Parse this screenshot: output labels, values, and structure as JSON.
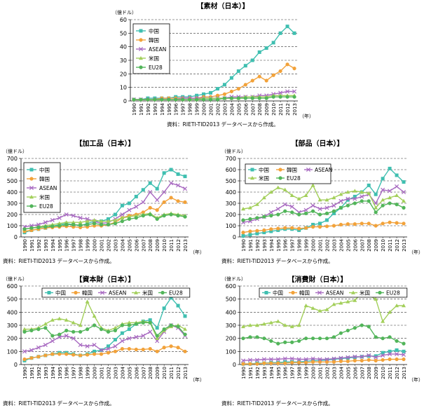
{
  "colors": {
    "中国": "#3fbfb0",
    "韓国": "#f2a23a",
    "ASEAN": "#a86ac1",
    "米国": "#a3cf5a",
    "EU28": "#52b55a"
  },
  "chart_data": [
    {
      "type": "line",
      "title": "【素材（日本）】",
      "ylabel": "（億ドル）",
      "xunit": "（年）",
      "ylim": [
        0,
        60
      ],
      "yticks": [
        0,
        10,
        20,
        30,
        40,
        50,
        60
      ],
      "grid": "horizontal-dashed",
      "legend": "top-left",
      "legend_layout": "column",
      "source": "資料：RIETI-TID2013 データベースから作成。",
      "categories": [
        "1990",
        "1991",
        "1992",
        "1993",
        "1994",
        "1995",
        "1996",
        "1997",
        "1998",
        "1999",
        "2000",
        "2001",
        "2002",
        "2003",
        "2004",
        "2005",
        "2006",
        "2007",
        "2008",
        "2009",
        "2010",
        "2011",
        "2012",
        "2013"
      ],
      "series": [
        {
          "name": "中国",
          "values": [
            1,
            1,
            2,
            2,
            2,
            2,
            3,
            3,
            3,
            4,
            5,
            6,
            9,
            12,
            17,
            22,
            26,
            30,
            36,
            39,
            43,
            50,
            55,
            50
          ]
        },
        {
          "name": "韓国",
          "values": [
            1,
            1,
            1,
            1,
            2,
            2,
            2,
            2,
            2,
            2,
            3,
            3,
            4,
            5,
            7,
            9,
            12,
            15,
            18,
            15,
            19,
            22,
            27,
            24
          ]
        },
        {
          "name": "ASEAN",
          "values": [
            1,
            1,
            1,
            1,
            1,
            1,
            1,
            2,
            2,
            2,
            2,
            2,
            2,
            2,
            3,
            3,
            3,
            3,
            4,
            4,
            5,
            6,
            7,
            7
          ]
        },
        {
          "name": "米国",
          "values": [
            1,
            1,
            1,
            1,
            1,
            1,
            1,
            1,
            1,
            1,
            2,
            2,
            2,
            2,
            2,
            2,
            3,
            3,
            3,
            3,
            4,
            4,
            4,
            4
          ]
        },
        {
          "name": "EU28",
          "values": [
            1,
            1,
            1,
            1,
            1,
            1,
            1,
            1,
            1,
            1,
            1,
            1,
            1,
            2,
            2,
            2,
            2,
            2,
            2,
            2,
            3,
            3,
            3,
            3
          ]
        }
      ]
    },
    {
      "type": "line",
      "title": "【加工品（日本）】",
      "ylabel": "（億ドル）",
      "xunit": "（年）",
      "ylim": [
        0,
        700
      ],
      "yticks": [
        0,
        100,
        200,
        300,
        400,
        500,
        600,
        700
      ],
      "grid": "horizontal-dashed",
      "legend": "top-left",
      "legend_layout": "column",
      "source": "資料：RIETI-TID2013 データベースから作成。",
      "categories": [
        "1990",
        "1991",
        "1992",
        "1993",
        "1994",
        "1995",
        "1996",
        "1997",
        "1998",
        "1999",
        "2000",
        "2001",
        "2002",
        "2003",
        "2004",
        "2005",
        "2006",
        "2007",
        "2008",
        "2009",
        "2010",
        "2011",
        "2012",
        "2013"
      ],
      "series": [
        {
          "name": "中国",
          "values": [
            40,
            60,
            70,
            80,
            95,
            110,
            120,
            110,
            100,
            120,
            140,
            140,
            160,
            200,
            280,
            300,
            360,
            420,
            480,
            430,
            570,
            600,
            560,
            540
          ]
        },
        {
          "name": "韓国",
          "values": [
            50,
            60,
            70,
            80,
            85,
            90,
            95,
            90,
            85,
            90,
            100,
            100,
            110,
            130,
            170,
            190,
            200,
            220,
            260,
            240,
            310,
            350,
            320,
            310
          ]
        },
        {
          "name": "ASEAN",
          "values": [
            90,
            100,
            110,
            130,
            150,
            170,
            200,
            190,
            170,
            160,
            140,
            120,
            130,
            160,
            200,
            240,
            270,
            310,
            400,
            330,
            400,
            480,
            460,
            430
          ]
        },
        {
          "name": "米国",
          "values": [
            70,
            80,
            90,
            100,
            110,
            120,
            130,
            130,
            130,
            140,
            150,
            140,
            140,
            150,
            170,
            180,
            190,
            200,
            210,
            170,
            200,
            210,
            200,
            190
          ]
        },
        {
          "name": "EU28",
          "values": [
            70,
            80,
            85,
            90,
            95,
            100,
            110,
            110,
            105,
            110,
            120,
            110,
            110,
            120,
            140,
            160,
            170,
            190,
            200,
            160,
            190,
            200,
            190,
            180
          ]
        }
      ]
    },
    {
      "type": "line",
      "title": "【部品（日本）】",
      "ylabel": "（億ドル）",
      "xunit": "（年）",
      "ylim": [
        0,
        700
      ],
      "yticks": [
        0,
        100,
        200,
        300,
        400,
        500,
        600,
        700
      ],
      "grid": "horizontal-dashed",
      "legend": "top-left",
      "legend_layout": "two-rows",
      "source": "資料：RIETI-TID2013 データベースから作成。",
      "categories": [
        "1990",
        "1991",
        "1992",
        "1993",
        "1994",
        "1995",
        "1996",
        "1997",
        "1998",
        "1999",
        "2000",
        "2001",
        "2002",
        "2003",
        "2004",
        "2005",
        "2006",
        "2007",
        "2008",
        "2009",
        "2010",
        "2011",
        "2012",
        "2013"
      ],
      "series": [
        {
          "name": "中国",
          "values": [
            10,
            20,
            30,
            40,
            50,
            60,
            70,
            70,
            60,
            80,
            110,
            120,
            150,
            210,
            260,
            330,
            360,
            400,
            460,
            380,
            520,
            610,
            550,
            490
          ]
        },
        {
          "name": "韓国",
          "values": [
            40,
            50,
            55,
            60,
            70,
            75,
            80,
            80,
            75,
            80,
            90,
            90,
            95,
            100,
            110,
            115,
            115,
            120,
            120,
            100,
            120,
            130,
            125,
            120
          ]
        },
        {
          "name": "ASEAN",
          "values": [
            130,
            140,
            160,
            180,
            220,
            250,
            290,
            270,
            220,
            240,
            280,
            250,
            260,
            280,
            320,
            340,
            340,
            360,
            380,
            300,
            420,
            410,
            450,
            400
          ]
        },
        {
          "name": "米国",
          "values": [
            250,
            260,
            290,
            350,
            400,
            440,
            420,
            370,
            340,
            370,
            460,
            330,
            330,
            350,
            380,
            400,
            410,
            400,
            390,
            260,
            330,
            350,
            370,
            320
          ]
        },
        {
          "name": "EU28",
          "values": [
            150,
            160,
            170,
            180,
            190,
            200,
            230,
            220,
            200,
            210,
            230,
            200,
            210,
            230,
            260,
            280,
            300,
            320,
            320,
            220,
            280,
            300,
            290,
            260
          ]
        }
      ]
    },
    {
      "type": "line",
      "title": "【資本財（日本）】",
      "ylabel": "（億ドル）",
      "xunit": "（年）",
      "ylim": [
        0,
        600
      ],
      "yticks": [
        0,
        100,
        200,
        300,
        400,
        500,
        600
      ],
      "grid": "horizontal-dashed",
      "legend": "top",
      "legend_layout": "row",
      "source": "資料：RIETI-TID2013 データベースから作成。",
      "categories": [
        "1990",
        "1991",
        "1992",
        "1993",
        "1994",
        "1995",
        "1996",
        "1997",
        "1998",
        "1999",
        "2000",
        "2001",
        "2002",
        "2003",
        "2004",
        "2005",
        "2006",
        "2007",
        "2008",
        "2009",
        "2010",
        "2011",
        "2012",
        "2013"
      ],
      "series": [
        {
          "name": "中国",
          "values": [
            30,
            50,
            60,
            70,
            80,
            90,
            90,
            80,
            70,
            80,
            100,
            110,
            140,
            190,
            240,
            270,
            310,
            330,
            340,
            280,
            430,
            510,
            450,
            370
          ]
        },
        {
          "name": "韓国",
          "values": [
            40,
            50,
            60,
            70,
            80,
            80,
            80,
            75,
            70,
            75,
            80,
            80,
            90,
            100,
            120,
            120,
            115,
            115,
            120,
            100,
            130,
            140,
            130,
            100
          ]
        },
        {
          "name": "ASEAN",
          "values": [
            100,
            110,
            130,
            150,
            180,
            210,
            220,
            200,
            150,
            140,
            150,
            110,
            120,
            140,
            180,
            200,
            210,
            220,
            250,
            180,
            250,
            300,
            280,
            220
          ]
        },
        {
          "name": "米国",
          "values": [
            270,
            270,
            280,
            310,
            340,
            350,
            340,
            320,
            300,
            480,
            370,
            280,
            260,
            280,
            310,
            320,
            320,
            330,
            320,
            200,
            260,
            290,
            300,
            270
          ]
        },
        {
          "name": "EU28",
          "values": [
            250,
            260,
            270,
            280,
            220,
            230,
            260,
            250,
            250,
            270,
            300,
            270,
            250,
            260,
            300,
            300,
            310,
            320,
            320,
            220,
            270,
            300,
            290,
            230
          ]
        }
      ]
    },
    {
      "type": "line",
      "title": "【消費財（日本）】",
      "ylabel": "（億ドル）",
      "xunit": "（年）",
      "ylim": [
        0,
        600
      ],
      "yticks": [
        0,
        100,
        200,
        300,
        400,
        500,
        600
      ],
      "grid": "horizontal-dashed",
      "legend": "top",
      "legend_layout": "row",
      "source": "資料：RIETI-TID2013 データベースから作成。",
      "categories": [
        "1990",
        "1991",
        "1992",
        "1993",
        "1994",
        "1995",
        "1996",
        "1997",
        "1998",
        "1999",
        "2000",
        "2001",
        "2002",
        "2003",
        "2004",
        "2005",
        "2006",
        "2007",
        "2008",
        "2009",
        "2010",
        "2011",
        "2012",
        "2013"
      ],
      "series": [
        {
          "name": "中国",
          "values": [
            5,
            5,
            10,
            10,
            15,
            15,
            20,
            20,
            20,
            25,
            30,
            30,
            35,
            40,
            45,
            50,
            55,
            60,
            65,
            65,
            90,
            100,
            110,
            100
          ]
        },
        {
          "name": "韓国",
          "values": [
            5,
            5,
            5,
            10,
            10,
            10,
            10,
            15,
            15,
            15,
            20,
            20,
            20,
            20,
            25,
            25,
            30,
            30,
            35,
            30,
            35,
            40,
            40,
            40
          ]
        },
        {
          "name": "ASEAN",
          "values": [
            30,
            35,
            35,
            40,
            40,
            40,
            45,
            45,
            40,
            40,
            45,
            40,
            40,
            45,
            50,
            55,
            60,
            60,
            70,
            55,
            70,
            80,
            80,
            75
          ]
        },
        {
          "name": "米国",
          "values": [
            290,
            300,
            300,
            310,
            320,
            330,
            300,
            290,
            300,
            450,
            430,
            410,
            420,
            460,
            470,
            480,
            490,
            550,
            530,
            500,
            330,
            400,
            450,
            450
          ]
        },
        {
          "name": "EU28",
          "values": [
            200,
            210,
            210,
            200,
            180,
            160,
            170,
            170,
            180,
            200,
            200,
            200,
            200,
            210,
            240,
            260,
            280,
            300,
            290,
            210,
            200,
            210,
            180,
            160
          ]
        }
      ]
    }
  ]
}
